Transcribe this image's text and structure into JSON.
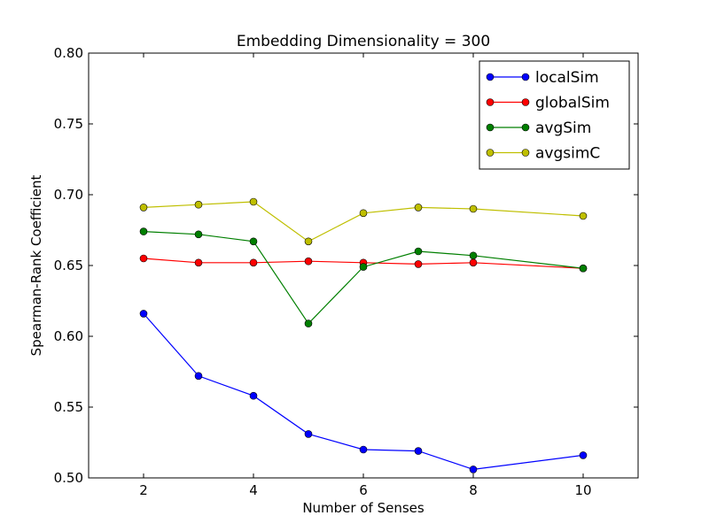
{
  "chart_data": {
    "type": "line",
    "title": "Embedding Dimensionality = 300",
    "xlabel": "Number of Senses",
    "ylabel": "Spearman-Rank Coefficient",
    "xlim": [
      1,
      11
    ],
    "ylim": [
      0.5,
      0.8
    ],
    "xticks": [
      2,
      4,
      6,
      8,
      10
    ],
    "xtick_labels": [
      "2",
      "4",
      "6",
      "8",
      "10"
    ],
    "yticks": [
      0.5,
      0.55,
      0.6,
      0.65,
      0.7,
      0.75,
      0.8
    ],
    "ytick_labels": [
      "0.50",
      "0.55",
      "0.60",
      "0.65",
      "0.70",
      "0.75",
      "0.80"
    ],
    "grid": false,
    "legend_position": "top-right",
    "x": [
      2,
      3,
      4,
      5,
      6,
      7,
      8,
      10
    ],
    "series": [
      {
        "name": "localSim",
        "color": "#0000ff",
        "values": [
          0.616,
          0.572,
          0.558,
          0.531,
          0.52,
          0.519,
          0.506,
          0.516
        ]
      },
      {
        "name": "globalSim",
        "color": "#ff0000",
        "values": [
          0.655,
          0.652,
          0.652,
          0.653,
          0.652,
          0.651,
          0.652,
          0.648
        ]
      },
      {
        "name": "avgSim",
        "color": "#007f00",
        "values": [
          0.674,
          0.672,
          0.667,
          0.609,
          0.649,
          0.66,
          0.657,
          0.648
        ]
      },
      {
        "name": "avgsimC",
        "color": "#bfbf00",
        "values": [
          0.691,
          0.693,
          0.695,
          0.667,
          0.687,
          0.691,
          0.69,
          0.685
        ]
      }
    ]
  }
}
